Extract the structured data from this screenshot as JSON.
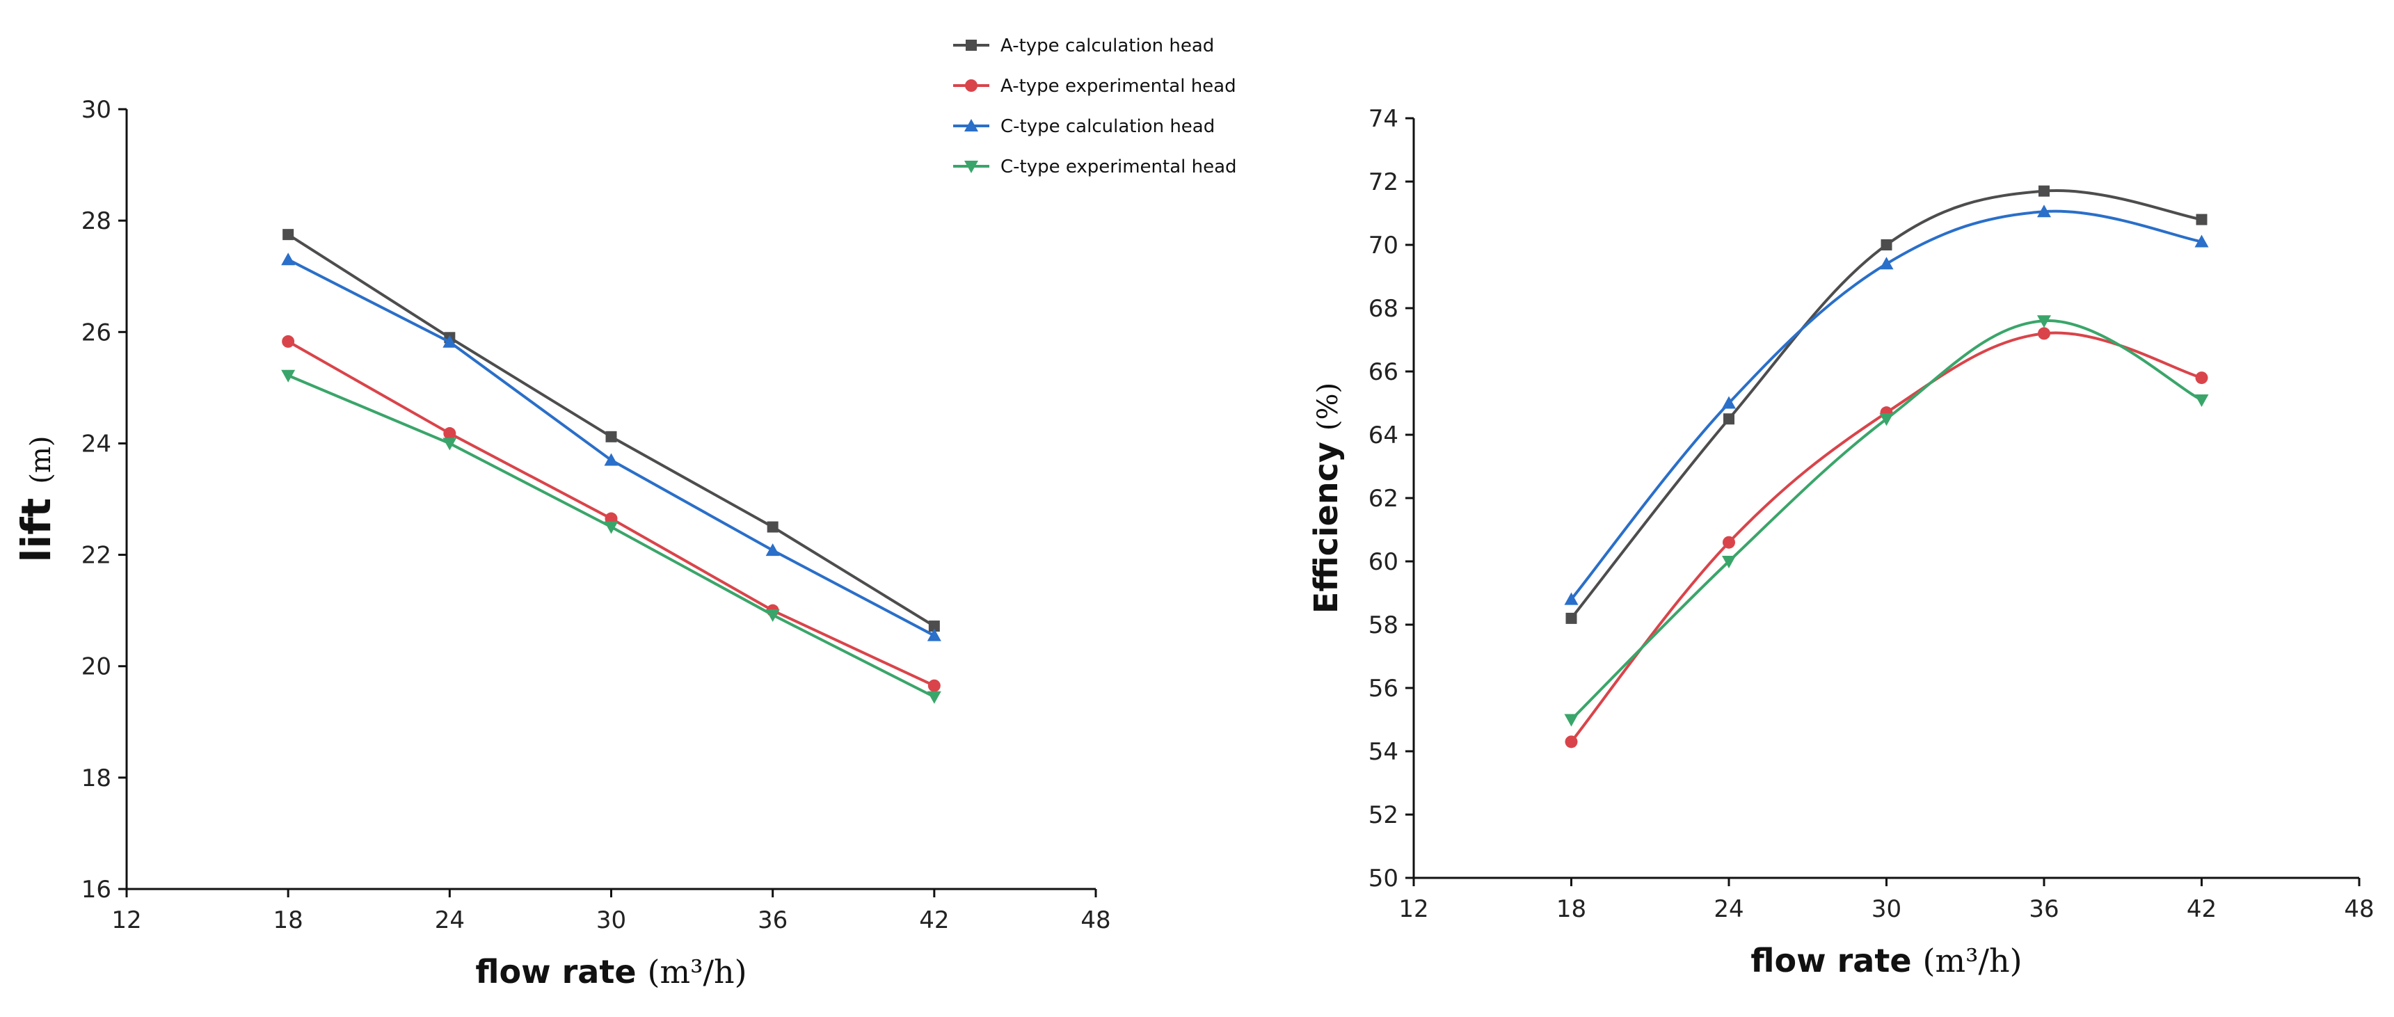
{
  "chart_data": [
    {
      "type": "line",
      "title": "",
      "xlabel": "flow rate",
      "xlabel_unit": "(m³/h)",
      "ylabel": "lift",
      "ylabel_unit": "(m)",
      "xlim": [
        12,
        48
      ],
      "ylim": [
        16,
        30
      ],
      "xticks": [
        12,
        18,
        24,
        30,
        36,
        42,
        48
      ],
      "yticks": [
        16,
        18,
        20,
        22,
        24,
        26,
        28,
        30
      ],
      "grid": false,
      "legend_position": "top-right",
      "x": [
        18,
        24,
        30,
        36,
        42
      ],
      "series": [
        {
          "name": "A-type calculation head",
          "color": "#4d4d4d",
          "marker": "square",
          "values": [
            27.75,
            25.9,
            24.12,
            22.5,
            20.72
          ]
        },
        {
          "name": "A-type experimental head",
          "color": "#d9444a",
          "marker": "circle",
          "values": [
            25.83,
            24.18,
            22.65,
            21.0,
            19.65
          ]
        },
        {
          "name": "C-type calculation head",
          "color": "#2a6fc9",
          "marker": "triangle-up",
          "values": [
            27.3,
            25.82,
            23.7,
            22.08,
            20.55
          ]
        },
        {
          "name": "C-type experimental head",
          "color": "#3aa56a",
          "marker": "triangle-down",
          "values": [
            25.22,
            24.0,
            22.5,
            20.92,
            19.45
          ]
        }
      ]
    },
    {
      "type": "line",
      "title": "",
      "xlabel": "flow rate",
      "xlabel_unit": "(m³/h)",
      "ylabel": "Efficiency",
      "ylabel_unit": "(%)",
      "xlim": [
        12,
        48
      ],
      "ylim": [
        50,
        74
      ],
      "xticks": [
        12,
        18,
        24,
        30,
        36,
        42,
        48
      ],
      "yticks": [
        50,
        52,
        54,
        56,
        58,
        60,
        62,
        64,
        66,
        68,
        70,
        72,
        74
      ],
      "grid": false,
      "x": [
        18,
        24,
        30,
        36,
        42
      ],
      "series": [
        {
          "name": "A-type calculation head",
          "color": "#4d4d4d",
          "marker": "square",
          "values": [
            58.2,
            64.5,
            70.0,
            71.7,
            70.8
          ]
        },
        {
          "name": "A-type experimental head",
          "color": "#d9444a",
          "marker": "circle",
          "values": [
            54.3,
            60.6,
            64.7,
            67.2,
            65.8
          ]
        },
        {
          "name": "C-type calculation head",
          "color": "#2a6fc9",
          "marker": "triangle-up",
          "values": [
            58.8,
            65.0,
            69.4,
            71.05,
            70.1
          ]
        },
        {
          "name": "C-type experimental head",
          "color": "#3aa56a",
          "marker": "triangle-down",
          "values": [
            55.0,
            60.0,
            64.5,
            67.6,
            65.1
          ]
        }
      ]
    }
  ]
}
